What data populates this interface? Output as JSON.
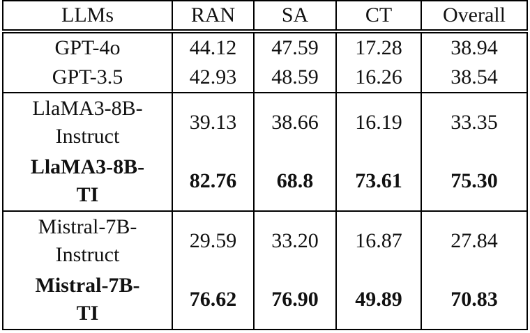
{
  "table": {
    "header": [
      "LLMs",
      "RAN",
      "SA",
      "CT",
      "Overall"
    ],
    "groups": [
      {
        "rows": [
          {
            "bold": false,
            "cells": [
              "GPT-4o",
              "44.12",
              "47.59",
              "17.28",
              "38.94"
            ]
          },
          {
            "bold": false,
            "cells": [
              "GPT-3.5",
              "42.93",
              "48.59",
              "16.26",
              "38.54"
            ]
          }
        ]
      },
      {
        "rows": [
          {
            "bold": false,
            "cells": [
              "LlaMA3-8B-\nInstruct",
              "39.13",
              "38.66",
              "16.19",
              "33.35"
            ]
          },
          {
            "bold": true,
            "cells": [
              "LlaMA3-8B-\nTI",
              "82.76",
              "68.8",
              "73.61",
              "75.30"
            ]
          }
        ]
      },
      {
        "rows": [
          {
            "bold": false,
            "cells": [
              "Mistral-7B-\nInstruct",
              "29.59",
              "33.20",
              "16.87",
              "27.84"
            ]
          },
          {
            "bold": true,
            "cells": [
              "Mistral-7B-\nTI",
              "76.62",
              "76.90",
              "49.89",
              "70.83"
            ]
          }
        ]
      }
    ]
  }
}
